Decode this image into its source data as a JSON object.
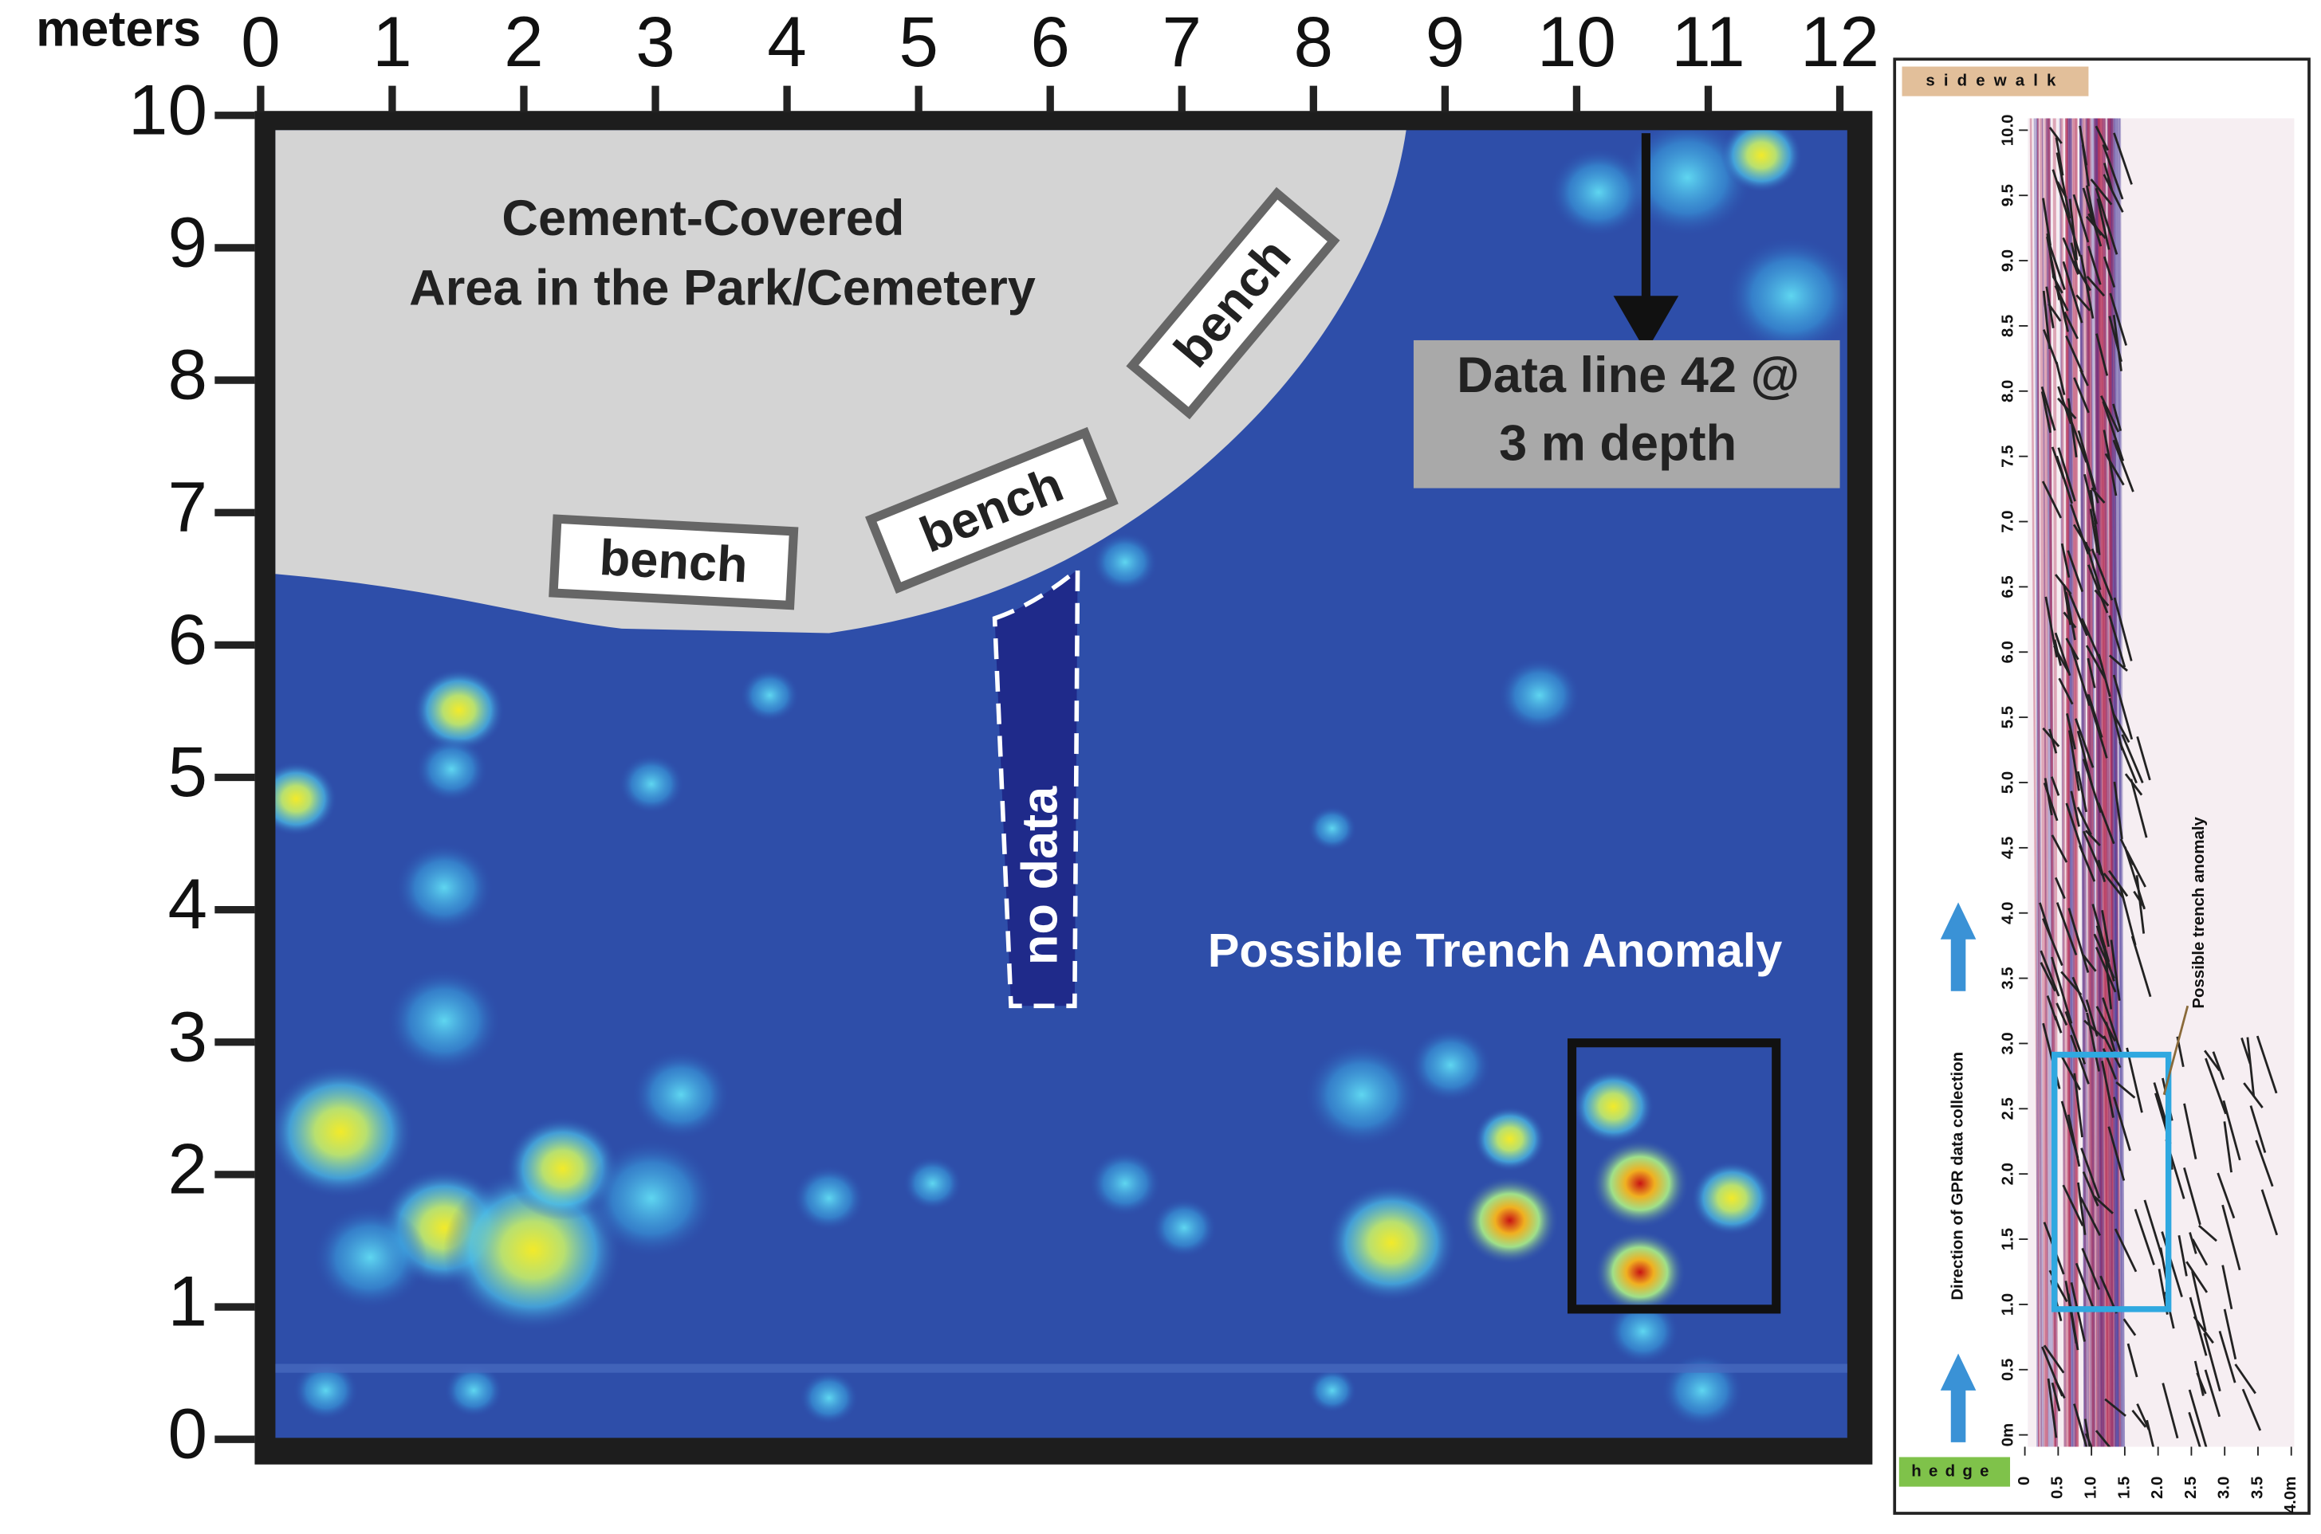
{
  "map": {
    "axis_unit": "meters",
    "x_ticks": [
      "0",
      "1",
      "2",
      "3",
      "4",
      "5",
      "6",
      "7",
      "8",
      "9",
      "10",
      "11",
      "12"
    ],
    "y_ticks": [
      "0",
      "1",
      "2",
      "3",
      "4",
      "5",
      "6",
      "7",
      "8",
      "9",
      "10"
    ],
    "area_label": [
      "Cement-Covered",
      "Area in the Park/Cemetery"
    ],
    "bench_labels": [
      "bench",
      "bench",
      "bench"
    ],
    "no_data_label": "no data",
    "data_line_label": [
      "Data line 42 @",
      "3 m depth"
    ],
    "anomaly_label": "Possible Trench Anomaly"
  },
  "profile": {
    "top_label": "sidewalk",
    "bottom_label": "hedge",
    "y_ticks": [
      "0m",
      "0.5",
      "1.0",
      "1.5",
      "2.0",
      "2.5",
      "3.0",
      "3.5",
      "4.0",
      "4.5",
      "5.0",
      "5.5",
      "6.0",
      "6.5",
      "7.0",
      "7.5",
      "8.0",
      "8.5",
      "9.0",
      "9.5",
      "10.0"
    ],
    "x_ticks": [
      "0",
      "0.5",
      "1.0",
      "1.5",
      "2.0",
      "2.5",
      "3.0",
      "3.5",
      "4.0m"
    ],
    "direction_label": "Direction of GPR data collection",
    "anomaly_label": "Possible trench anomaly"
  }
}
